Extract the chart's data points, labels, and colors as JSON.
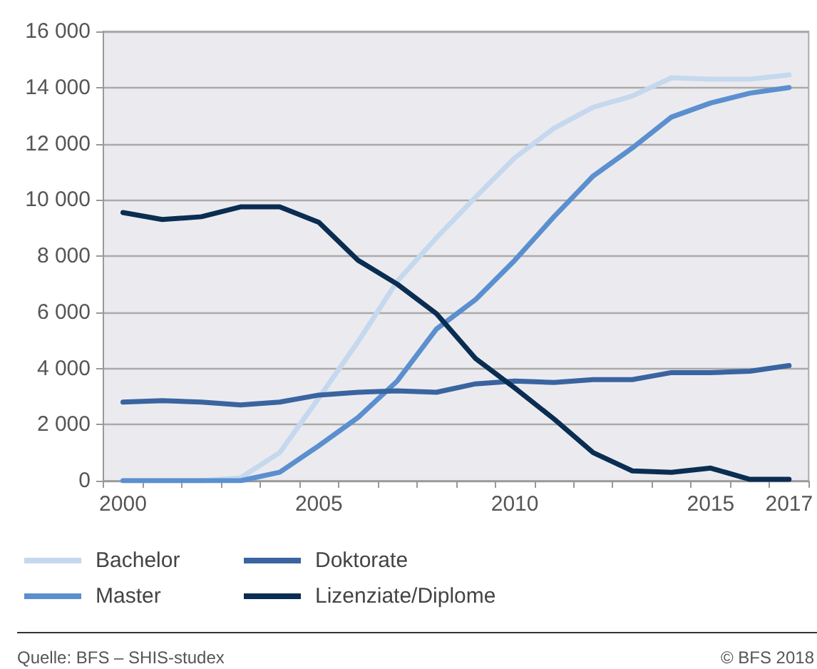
{
  "chart_data": {
    "type": "line",
    "categories": [
      "2000",
      null,
      null,
      null,
      null,
      "2005",
      null,
      null,
      null,
      null,
      "2010",
      null,
      null,
      null,
      null,
      "2015",
      null,
      "2017"
    ],
    "series": [
      {
        "name": "Bachelor",
        "color": "#c5d8ee",
        "values": [
          0,
          0,
          0,
          100,
          1000,
          2950,
          4950,
          7100,
          8650,
          10100,
          11500,
          12550,
          13300,
          13700,
          14350,
          14300,
          14300,
          14450
        ]
      },
      {
        "name": "Master",
        "color": "#5b8fcf",
        "values": [
          0,
          0,
          0,
          0,
          300,
          1250,
          2250,
          3550,
          5400,
          6450,
          7850,
          9400,
          10850,
          11850,
          12950,
          13450,
          13800,
          14000
        ]
      },
      {
        "name": "Doktorate",
        "color": "#3a64a0",
        "values": [
          2800,
          2850,
          2800,
          2700,
          2800,
          3050,
          3150,
          3200,
          3150,
          3450,
          3550,
          3500,
          3600,
          3600,
          3850,
          3850,
          3900,
          4100
        ]
      },
      {
        "name": "Lizenziate/Diplome",
        "color": "#0a2d52",
        "values": [
          9550,
          9300,
          9400,
          9750,
          9750,
          9200,
          7850,
          7000,
          5950,
          4350,
          3300,
          2200,
          1000,
          350,
          300,
          450,
          50,
          50
        ]
      }
    ],
    "ylim": [
      0,
      16000
    ],
    "yticks": [
      0,
      {
        "value": 2000,
        "label": "2 000"
      },
      {
        "value": 4000,
        "label": "4 000"
      },
      {
        "value": 6000,
        "label": "6 000"
      },
      {
        "value": 8000,
        "label": "8 000"
      },
      {
        "value": 10000,
        "label": "10 000"
      },
      {
        "value": 12000,
        "label": "12 000"
      },
      {
        "value": 14000,
        "label": "14 000"
      },
      {
        "value": 16000,
        "label": "16 000"
      }
    ],
    "grid": "y",
    "legend": "bottom left",
    "marker": "none",
    "line_style": "solid",
    "annotations": [
      "Quelle: BFS – SHIS-studex",
      "© BFS 2018"
    ]
  }
}
